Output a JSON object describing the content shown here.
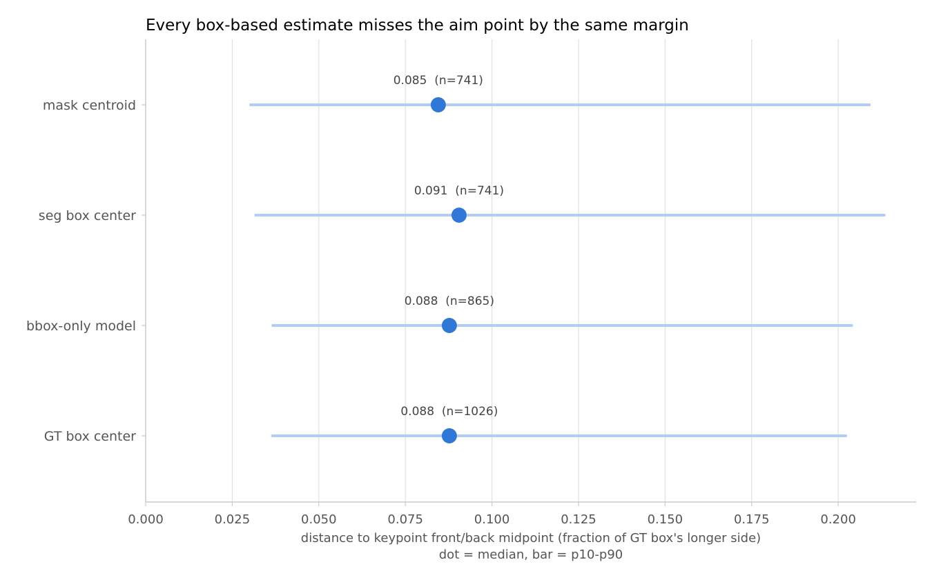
{
  "chart_data": {
    "type": "dot-range",
    "title": "Every box-based estimate misses the aim point by the same margin",
    "xlabel": "distance to keypoint front/back midpoint (fraction of GT box's longer side)",
    "xlabel_note": "dot = median, bar = p10-p90",
    "xlim": [
      0,
      0.2225
    ],
    "xticks": [
      0.0,
      0.025,
      0.05,
      0.075,
      0.1,
      0.125,
      0.15,
      0.175,
      0.2
    ],
    "xtick_labels": [
      "0.000",
      "0.025",
      "0.050",
      "0.075",
      "0.100",
      "0.125",
      "0.150",
      "0.175",
      "0.200"
    ],
    "grid": "vertical",
    "colors": {
      "dot": "#2f78d7",
      "range": "#b2cdf1",
      "grid": "#e0e0e0",
      "axis": "#cccccc",
      "tick_text": "#555555",
      "annotation": "#444444",
      "title": "#000000"
    },
    "categories": [
      "mask centroid",
      "seg box center",
      "bbox-only model",
      "GT box center"
    ],
    "median": [
      0.0845,
      0.0905,
      0.0877,
      0.0877
    ],
    "p10": [
      0.0303,
      0.0318,
      0.0367,
      0.0366
    ],
    "p90": [
      0.209,
      0.2133,
      0.2039,
      0.2022
    ],
    "annotations": [
      "0.085  (n=741)",
      "0.091  (n=741)",
      "0.088  (n=865)",
      "0.088  (n=1026)"
    ]
  }
}
